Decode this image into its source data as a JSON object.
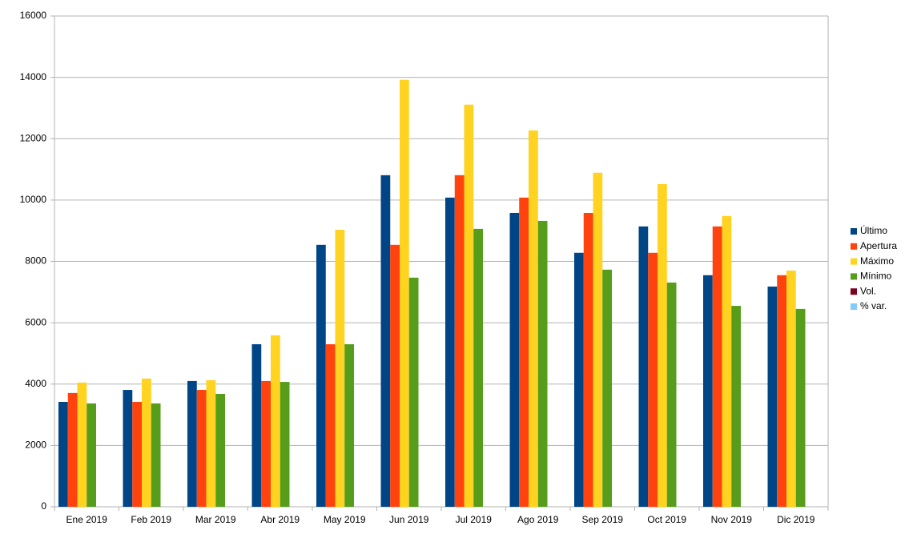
{
  "chart_data": {
    "type": "bar",
    "categories": [
      "Ene 2019",
      "Feb 2019",
      "Mar 2019",
      "Abr 2019",
      "May 2019",
      "Jun 2019",
      "Jul 2019",
      "Ago 2019",
      "Sep 2019",
      "Oct 2019",
      "Nov 2019",
      "Dic 2019"
    ],
    "series": [
      {
        "name": "Último",
        "color": "#004586",
        "values": [
          3420,
          3810,
          4100,
          5300,
          8540,
          10810,
          10080,
          9580,
          8280,
          9140,
          7550,
          7180
        ]
      },
      {
        "name": "Apertura",
        "color": "#ff420e",
        "values": [
          3710,
          3420,
          3810,
          4100,
          5300,
          8540,
          10810,
          10080,
          9580,
          8280,
          9140,
          7550
        ]
      },
      {
        "name": "Máximo",
        "color": "#ffd320",
        "values": [
          4050,
          4180,
          4130,
          5590,
          9030,
          13920,
          13110,
          12270,
          10890,
          10520,
          9480,
          7700
        ]
      },
      {
        "name": "Mínimo",
        "color": "#579d1c",
        "values": [
          3370,
          3370,
          3680,
          4070,
          5300,
          7470,
          9060,
          9320,
          7730,
          7310,
          6550,
          6450
        ]
      },
      {
        "name": "Vol.",
        "color": "#7e0021",
        "values": [
          null,
          null,
          null,
          null,
          null,
          null,
          null,
          null,
          null,
          null,
          null,
          null
        ]
      },
      {
        "name": "% var.",
        "color": "#83caff",
        "values": [
          null,
          null,
          null,
          null,
          null,
          null,
          null,
          null,
          null,
          null,
          null,
          null
        ]
      }
    ],
    "ylim": [
      0,
      16000
    ],
    "yticks": [
      0,
      2000,
      4000,
      6000,
      8000,
      10000,
      12000,
      14000,
      16000
    ],
    "grid": true,
    "legend": "right"
  }
}
